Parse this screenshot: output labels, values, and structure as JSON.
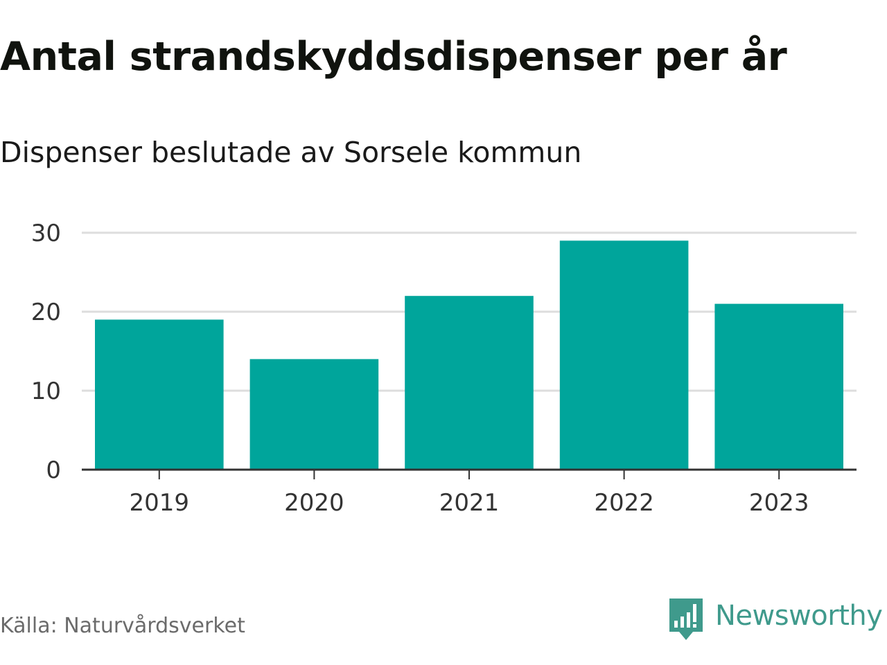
{
  "title": "Antal strandskyddsdispenser per år",
  "subtitle": "Dispenser beslutade av Sorsele kommun",
  "source": "Källa: Naturvårdsverket",
  "brand": {
    "name": "Newsworthy",
    "logo_icon": "newsworthy-bar-chart-bubble-icon",
    "color": "#3f9a8c"
  },
  "colors": {
    "bar": "#00a59b",
    "grid": "#dddddd",
    "axis": "#333333"
  },
  "chart_data": {
    "type": "bar",
    "title": "Antal strandskyddsdispenser per år",
    "subtitle": "Dispenser beslutade av Sorsele kommun",
    "xlabel": "",
    "ylabel": "",
    "categories": [
      "2019",
      "2020",
      "2021",
      "2022",
      "2023"
    ],
    "values": [
      19,
      14,
      22,
      29,
      21
    ],
    "ylim": [
      0,
      30
    ],
    "yticks": [
      0,
      10,
      20,
      30
    ],
    "grid": true,
    "legend": "none"
  }
}
